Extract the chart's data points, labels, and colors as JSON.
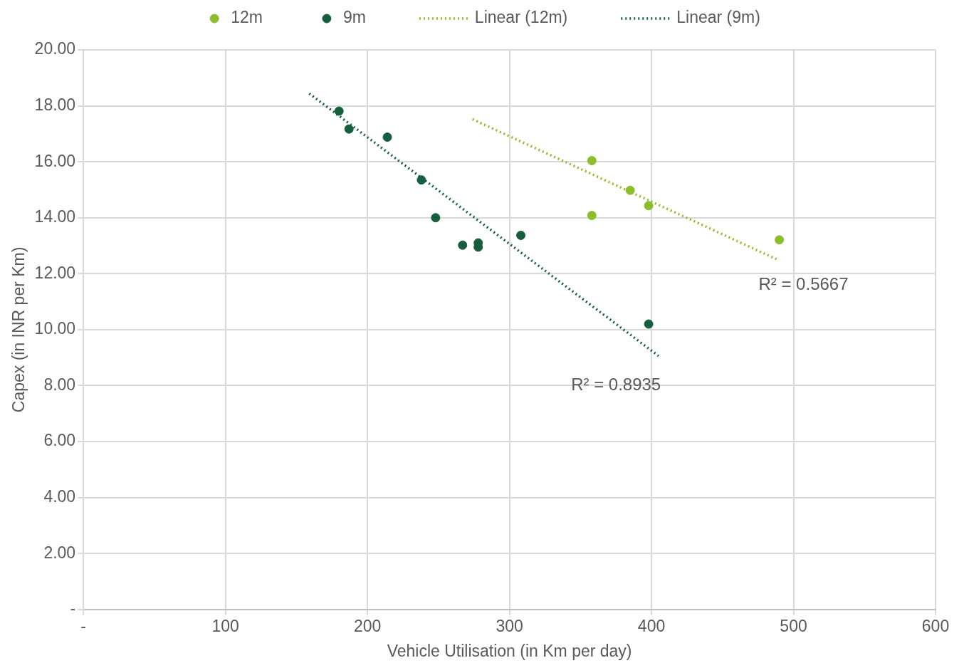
{
  "chart_data": {
    "type": "scatter",
    "xlabel": "Vehicle Utilisation (in Km per day)",
    "ylabel": "Capex (in INR per Km)",
    "xlim": [
      0,
      600
    ],
    "xticks": [
      {
        "value": 0,
        "label": "-"
      },
      100,
      200,
      300,
      400,
      500,
      600
    ],
    "ylim": [
      0,
      20
    ],
    "yticks": [
      {
        "value": 0,
        "label": "-"
      },
      {
        "value": 2,
        "label": "2.00"
      },
      {
        "value": 4,
        "label": "4.00"
      },
      {
        "value": 6,
        "label": "6.00"
      },
      {
        "value": 8,
        "label": "8.00"
      },
      {
        "value": 10,
        "label": "10.00"
      },
      {
        "value": 12,
        "label": "12.00"
      },
      {
        "value": 14,
        "label": "14.00"
      },
      {
        "value": 16,
        "label": "16.00"
      },
      {
        "value": 18,
        "label": "18.00"
      },
      {
        "value": 20,
        "label": "20.00"
      }
    ],
    "grid": true,
    "legend": "top",
    "marker": "circle",
    "series": [
      {
        "name": "12m",
        "color": "#8cbd2b",
        "x": [
          358,
          358,
          385,
          398,
          490
        ],
        "values": [
          16.04,
          14.08,
          14.98,
          14.43,
          13.21
        ]
      },
      {
        "name": "9m",
        "color": "#175e3f",
        "x": [
          180,
          187,
          214,
          238,
          248,
          267,
          278,
          278,
          308,
          398
        ],
        "values": [
          17.81,
          17.17,
          16.88,
          15.35,
          14.0,
          13.02,
          13.1,
          12.95,
          13.37,
          10.2
        ]
      },
      {
        "name": "Linear (12m)",
        "type": "line",
        "color": "#8cbd2b",
        "line_style": "dotted",
        "marker": "none",
        "x": [
          274,
          488
        ],
        "values": [
          17.52,
          12.52
        ]
      },
      {
        "name": "Linear (9m)",
        "type": "line",
        "color": "#175e3f",
        "line_style": "dotted",
        "marker": "none",
        "x": [
          159,
          405
        ],
        "values": [
          18.44,
          9.06
        ]
      }
    ],
    "annotations": [
      "R² = 0.5667",
      "R² = 0.8935"
    ]
  }
}
